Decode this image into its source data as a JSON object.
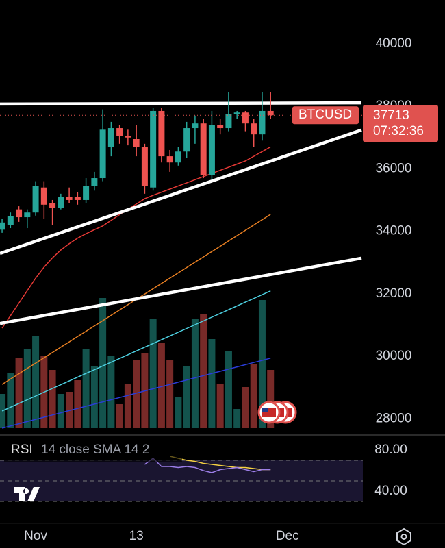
{
  "chart_data": {
    "type": "candlestick",
    "symbol": "BTCUSD",
    "last_price": 37713,
    "countdown": "07:32:36",
    "open": [
      34050,
      34200,
      34700,
      34450,
      34600,
      35400,
      34900,
      34750,
      35100,
      35100,
      35000,
      35450,
      35700,
      36700,
      37300,
      37050,
      36950,
      36700,
      35400,
      37850,
      36400,
      36200,
      36550,
      37300,
      37450,
      35800,
      37400,
      37300,
      37750,
      37800,
      37450,
      37100,
      37850
    ],
    "high": [
      34400,
      34600,
      34800,
      34700,
      35600,
      35600,
      35000,
      35200,
      35400,
      35250,
      35700,
      35900,
      37900,
      37500,
      37400,
      37250,
      37400,
      36800,
      37950,
      37950,
      36600,
      36700,
      37500,
      37700,
      37600,
      37850,
      37600,
      38450,
      37850,
      37850,
      37600,
      38450,
      38450
    ],
    "low": [
      33950,
      34100,
      34300,
      34100,
      34500,
      34400,
      34200,
      34700,
      34900,
      34850,
      34900,
      35300,
      35600,
      36400,
      36800,
      36750,
      36400,
      35200,
      35300,
      36200,
      35900,
      36100,
      36350,
      36800,
      35700,
      35650,
      37100,
      37200,
      37600,
      37200,
      36700,
      36900,
      37600
    ],
    "close": [
      34280,
      34480,
      34450,
      34600,
      35450,
      34850,
      34750,
      35100,
      35000,
      35000,
      35450,
      35700,
      37250,
      37300,
      37050,
      37000,
      36700,
      35450,
      37850,
      36400,
      36200,
      36550,
      37300,
      37450,
      35800,
      37400,
      37300,
      37750,
      37800,
      37450,
      37100,
      37850,
      37713
    ],
    "volume": [
      50,
      80,
      103,
      115,
      135,
      105,
      85,
      50,
      53,
      70,
      115,
      90,
      190,
      105,
      35,
      65,
      100,
      110,
      160,
      125,
      100,
      45,
      90,
      160,
      167,
      130,
      65,
      113,
      28,
      60,
      93,
      187,
      85
    ],
    "up_color": "#26a69a",
    "down_color": "#ef5350",
    "moving_averages": [
      {
        "color": "#e53935",
        "values": [
          30900,
          31300,
          31700,
          32100,
          32500,
          32850,
          33150,
          33400,
          33600,
          33780,
          33920,
          34050,
          34170,
          34350,
          34530,
          34700,
          34870,
          35040,
          35150,
          35250,
          35350,
          35450,
          35550,
          35650,
          35750,
          35850,
          35950,
          36050,
          36150,
          36250,
          36400,
          36550,
          36700
        ]
      },
      {
        "color": "#e67e22",
        "values": [
          29100,
          29270,
          29440,
          29610,
          29780,
          29950,
          30120,
          30290,
          30460,
          30630,
          30800,
          30970,
          31140,
          31310,
          31480,
          31650,
          31820,
          31990,
          32160,
          32330,
          32500,
          32670,
          32840,
          33010,
          33180,
          33350,
          33520,
          33690,
          33860,
          34030,
          34200,
          34370,
          34540
        ]
      },
      {
        "color": "#4dd0e1",
        "values": [
          28250,
          28370,
          28490,
          28610,
          28730,
          28850,
          28970,
          29090,
          29210,
          29330,
          29450,
          29570,
          29690,
          29810,
          29930,
          30050,
          30170,
          30290,
          30410,
          30530,
          30650,
          30770,
          30890,
          31010,
          31130,
          31250,
          31370,
          31490,
          31610,
          31730,
          31850,
          31970,
          32090
        ]
      },
      {
        "color": "#2a3cd8",
        "values": [
          27700,
          27770,
          27840,
          27910,
          27980,
          28050,
          28120,
          28190,
          28260,
          28330,
          28400,
          28470,
          28540,
          28610,
          28680,
          28750,
          28820,
          28890,
          28960,
          29030,
          29100,
          29170,
          29240,
          29310,
          29380,
          29450,
          29520,
          29590,
          29660,
          29730,
          29800,
          29870,
          29940
        ]
      }
    ],
    "trendlines": [
      {
        "color": "#ffffff",
        "values": [
          38070,
          38110
        ]
      },
      {
        "color": "#ffffff",
        "values": [
          33290,
          37240
        ]
      },
      {
        "color": "#ffffff",
        "values": [
          31050,
          33140
        ]
      }
    ],
    "ylim": [
      27590,
      41400
    ],
    "yticks": [
      28000,
      30000,
      32000,
      34000,
      36000,
      38000,
      40000
    ],
    "xlim": [
      -0.25,
      43
    ],
    "xticks": [
      {
        "value": 4,
        "label": "Nov"
      },
      {
        "value": 16,
        "label": "13"
      },
      {
        "value": 34,
        "label": "Dec"
      }
    ],
    "rsi": {
      "title": "RSI",
      "params": "14 close SMA 14 2",
      "color": "#9c7ee8",
      "sma_color": "#f5d142",
      "values": [
        null,
        null,
        null,
        null,
        null,
        null,
        null,
        null,
        null,
        null,
        null,
        null,
        null,
        null,
        null,
        null,
        null,
        66,
        72,
        64,
        64,
        63,
        64,
        63,
        60,
        58,
        61,
        62,
        63,
        61,
        59,
        61,
        61
      ],
      "sma": [
        null,
        null,
        null,
        null,
        null,
        null,
        null,
        null,
        null,
        null,
        null,
        null,
        null,
        null,
        null,
        null,
        null,
        null,
        null,
        null,
        74,
        72,
        70,
        69,
        67,
        66,
        65,
        64,
        63,
        63,
        62,
        61,
        61
      ],
      "ylim": [
        10,
        91.3
      ],
      "yticks": [
        {
          "value": 80,
          "label": "80.00"
        },
        {
          "value": 40,
          "label": "40.00"
        }
      ],
      "bands": [
        30,
        50,
        70
      ]
    }
  }
}
